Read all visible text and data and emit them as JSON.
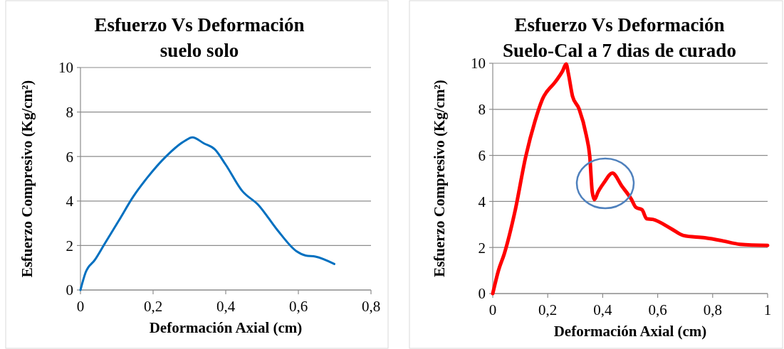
{
  "chart_data": [
    {
      "type": "line",
      "title": "Esfuerzo Vs Deformación",
      "subtitle": "suelo solo",
      "xlabel": "Deformación Axial (cm)",
      "ylabel": "Esfuerzo Compresivo (Kg/cm²)",
      "x": [
        0,
        0.014,
        0.04,
        0.066,
        0.106,
        0.145,
        0.184,
        0.236,
        0.288,
        0.308,
        0.34,
        0.37,
        0.4,
        0.445,
        0.49,
        0.542,
        0.595,
        0.62,
        0.647,
        0.699
      ],
      "series": [
        {
          "color": "#0070c0",
          "values": [
            0,
            0.78,
            1.36,
            2.06,
            3.13,
            4.19,
            5.05,
            6.01,
            6.71,
            6.86,
            6.59,
            6.32,
            5.63,
            4.46,
            3.82,
            2.7,
            1.74,
            1.55,
            1.5,
            1.17
          ]
        }
      ],
      "xlim": [
        0,
        0.8
      ],
      "xticks": [
        {
          "value": 0,
          "label": "0"
        },
        {
          "value": 0.2,
          "label": "0,2"
        },
        {
          "value": 0.4,
          "label": "0,4"
        },
        {
          "value": 0.6,
          "label": "0,6"
        },
        {
          "value": 0.8,
          "label": "0,8"
        }
      ],
      "ylim": [
        0,
        10
      ],
      "yticks": [
        {
          "value": 0,
          "label": "0"
        },
        2,
        4,
        6,
        8,
        10
      ],
      "grid": "y",
      "marker": "none",
      "line_style": "solid"
    },
    {
      "type": "line",
      "title": "Esfuerzo Vs Deformación",
      "subtitle": "Suelo-Cal a 7 dias de curado",
      "xlabel": "Deformación Axial (cm)",
      "ylabel": "Esfuerzo Compresivo (Kg/cm²)",
      "x": [
        0,
        0.021,
        0.042,
        0.081,
        0.12,
        0.154,
        0.18,
        0.228,
        0.254,
        0.267,
        0.275,
        0.29,
        0.314,
        0.34,
        0.353,
        0.362,
        0.37,
        0.383,
        0.405,
        0.435,
        0.47,
        0.504,
        0.521,
        0.543,
        0.56,
        0.582,
        0.65,
        0.694,
        0.771,
        0.832,
        0.9,
        1.0
      ],
      "series": [
        {
          "color": "#ff0000",
          "values": [
            0,
            1.01,
            1.73,
            3.58,
            5.95,
            7.5,
            8.42,
            9.2,
            9.66,
            9.97,
            9.56,
            8.58,
            8.02,
            6.88,
            5.95,
            4.41,
            4.08,
            4.41,
            4.82,
            5.23,
            4.66,
            4.1,
            3.74,
            3.64,
            3.25,
            3.22,
            2.81,
            2.52,
            2.42,
            2.3,
            2.14,
            2.09
          ]
        }
      ],
      "xlim": [
        0,
        1
      ],
      "xticks": [
        {
          "value": 0,
          "label": "0"
        },
        {
          "value": 0.2,
          "label": "0,2"
        },
        {
          "value": 0.4,
          "label": "0,4"
        },
        {
          "value": 0.6,
          "label": "0,6"
        },
        {
          "value": 0.8,
          "label": "0,8"
        },
        1
      ],
      "ylim": [
        0,
        10
      ],
      "yticks": [
        {
          "value": 0,
          "label": "0"
        },
        2,
        4,
        6,
        8,
        10
      ],
      "grid": "y",
      "marker": "none",
      "line_style": "solid"
    }
  ]
}
